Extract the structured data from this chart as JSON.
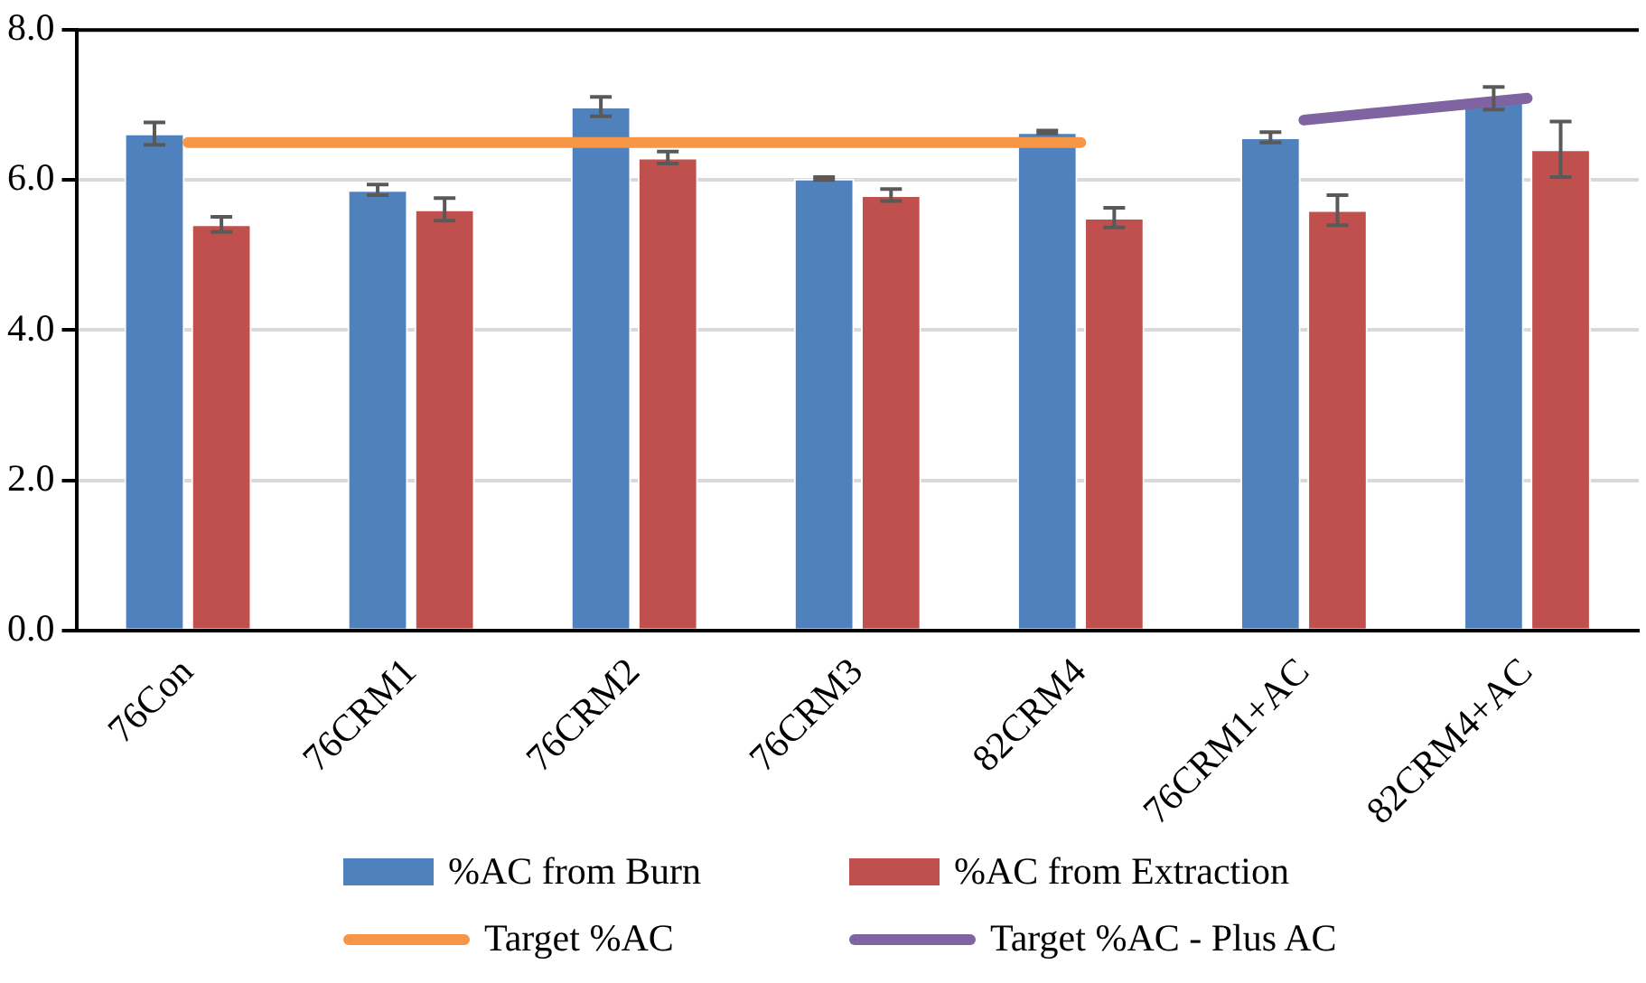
{
  "chart_data": {
    "type": "bar",
    "categories": [
      "76Con",
      "76CRM1",
      "76CRM2",
      "76CRM3",
      "82CRM4",
      "76CRM1+AC",
      "82CRM4+AC"
    ],
    "series": [
      {
        "name": "%AC from Burn",
        "color": "#4f81bd",
        "values": [
          6.62,
          5.87,
          6.98,
          6.02,
          6.64,
          6.57,
          7.09
        ],
        "errors": [
          0.15,
          0.07,
          0.13,
          0.02,
          0.02,
          0.07,
          0.15
        ]
      },
      {
        "name": "%AC from Extraction",
        "color": "#c0504d",
        "values": [
          5.41,
          5.61,
          6.3,
          5.8,
          5.5,
          5.6,
          6.41
        ],
        "errors": [
          0.1,
          0.15,
          0.08,
          0.08,
          0.13,
          0.2,
          0.37
        ]
      },
      {
        "name": "Target %AC",
        "type": "line",
        "color": "#f79646",
        "values": [
          6.5,
          6.5,
          6.5,
          6.5,
          6.5,
          null,
          null
        ]
      },
      {
        "name": "Target %AC - Plus AC",
        "type": "line",
        "color": "#8064a2",
        "values": [
          null,
          null,
          null,
          null,
          null,
          6.8,
          7.09
        ]
      }
    ],
    "ylim": [
      0,
      8
    ],
    "yticks": [
      {
        "value": 0,
        "label": "0.0"
      },
      {
        "value": 2,
        "label": "2.0"
      },
      {
        "value": 4,
        "label": "4.0"
      },
      {
        "value": 6,
        "label": "6.0"
      },
      {
        "value": 8,
        "label": "8.0"
      }
    ],
    "grid": "y",
    "legend": "bottom",
    "marker": "none"
  }
}
